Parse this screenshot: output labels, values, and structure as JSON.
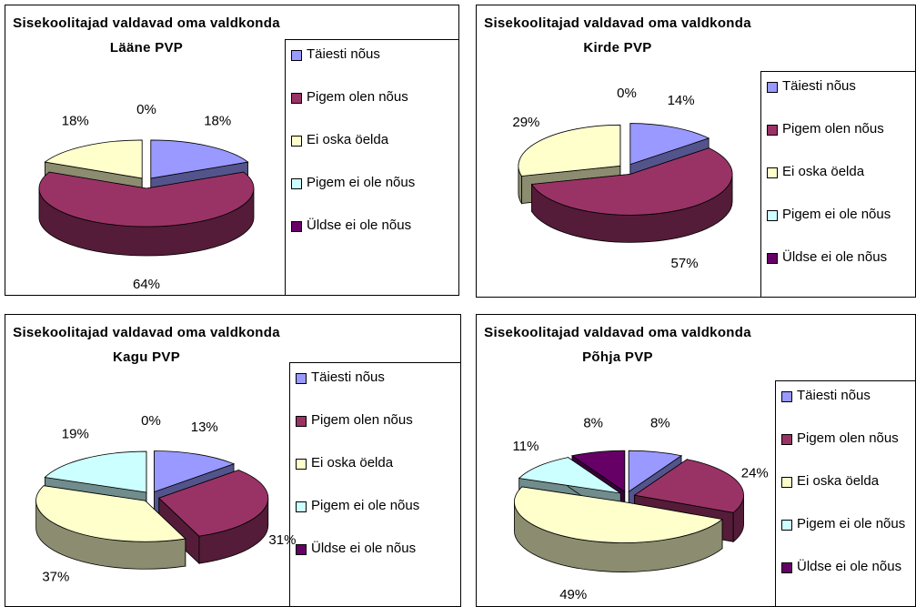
{
  "chart_data": [
    {
      "type": "pie3d",
      "title": "Sisekoolitajad valdavad oma valdkonda Lääne PVP",
      "categories": [
        "Täiesti nõus",
        "Pigem olen nõus",
        "Ei oska öelda",
        "Pigem ei ole nõus",
        "Üldse ei ole nõus"
      ],
      "values": [
        18,
        64,
        18,
        0,
        0
      ],
      "value_labels": [
        "18%",
        "64%",
        "18%",
        "0%",
        null
      ],
      "colors": [
        "#9999ff",
        "#993366",
        "#ffffcc",
        "#ccffff",
        "#660066"
      ]
    },
    {
      "type": "pie3d",
      "title": "Sisekoolitajad valdavad oma valdkonda Kirde PVP",
      "categories": [
        "Täiesti nõus",
        "Pigem olen nõus",
        "Ei oska öelda",
        "Pigem ei ole nõus",
        "Üldse ei ole nõus"
      ],
      "values": [
        14,
        57,
        29,
        0,
        0
      ],
      "value_labels": [
        "14%",
        "57%",
        "29%",
        "0%",
        null
      ],
      "colors": [
        "#9999ff",
        "#993366",
        "#ffffcc",
        "#ccffff",
        "#660066"
      ]
    },
    {
      "type": "pie3d",
      "title": "Sisekoolitajad valdavad oma valdkonda Kagu PVP",
      "categories": [
        "Täiesti nõus",
        "Pigem olen nõus",
        "Ei oska öelda",
        "Pigem ei ole nõus",
        "Üldse ei ole nõus"
      ],
      "values": [
        13,
        31,
        37,
        19,
        0
      ],
      "value_labels": [
        "13%",
        "31%",
        "37%",
        "19%",
        "0%"
      ],
      "colors": [
        "#9999ff",
        "#993366",
        "#ffffcc",
        "#ccffff",
        "#660066"
      ]
    },
    {
      "type": "pie3d",
      "title": "Sisekoolitajad valdavad oma valdkonda Põhja PVP",
      "categories": [
        "Täiesti nõus",
        "Pigem olen nõus",
        "Ei oska öelda",
        "Pigem ei ole nõus",
        "Üldse ei ole nõus"
      ],
      "values": [
        8,
        24,
        49,
        11,
        8
      ],
      "value_labels": [
        "8%",
        "24%",
        "49%",
        "11%",
        "8%"
      ],
      "colors": [
        "#9999ff",
        "#993366",
        "#ffffcc",
        "#ccffff",
        "#660066"
      ]
    }
  ]
}
